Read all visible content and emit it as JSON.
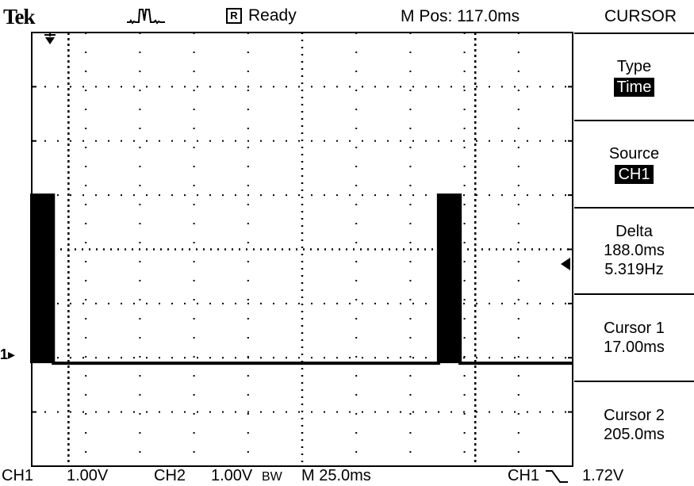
{
  "header": {
    "brand": "Tek",
    "trigger_icon": "trigger-pulse-icon",
    "run_state_badge": "R",
    "run_state": "Ready",
    "m_pos": "M Pos: 117.0ms",
    "menu_title": "CURSOR"
  },
  "side_menu": {
    "type": {
      "label": "Type",
      "value": "Time"
    },
    "source": {
      "label": "Source",
      "value": "CH1"
    },
    "delta": {
      "label": "Delta",
      "time": "188.0ms",
      "freq": "5.319Hz"
    },
    "cursor1": {
      "label": "Cursor 1",
      "value": "17.00ms"
    },
    "cursor2": {
      "label": "Cursor 2",
      "value": "205.0ms"
    }
  },
  "status": {
    "ch1_label": "CH1",
    "ch1_scale": "1.00V",
    "ch2_label": "CH2",
    "ch2_scale": "1.00V",
    "bw_mark": "BW",
    "timebase": "M 25.0ms",
    "trig_source": "CH1",
    "trig_slope_icon": "falling-edge-icon",
    "trig_level": "1.72V"
  },
  "markers": {
    "ch1_ground_label": "1",
    "trigger_position_icon": "trigger-position-icon",
    "trigger_level_icon": "trigger-level-arrow-icon"
  },
  "scope": {
    "divisions_x": 10,
    "divisions_y": 8,
    "volts_per_div": 1.0,
    "time_per_div_ms": 25.0,
    "ch1_baseline_div": 1.9,
    "pulse_high_div": 5.0,
    "pulses_ms": [
      [
        0.0,
        10.0
      ],
      [
        188.0,
        198.0
      ]
    ],
    "cursor1_ms": 17.0,
    "cursor2_ms": 205.0,
    "trace_color": "#000000",
    "background": "#ffffff"
  }
}
